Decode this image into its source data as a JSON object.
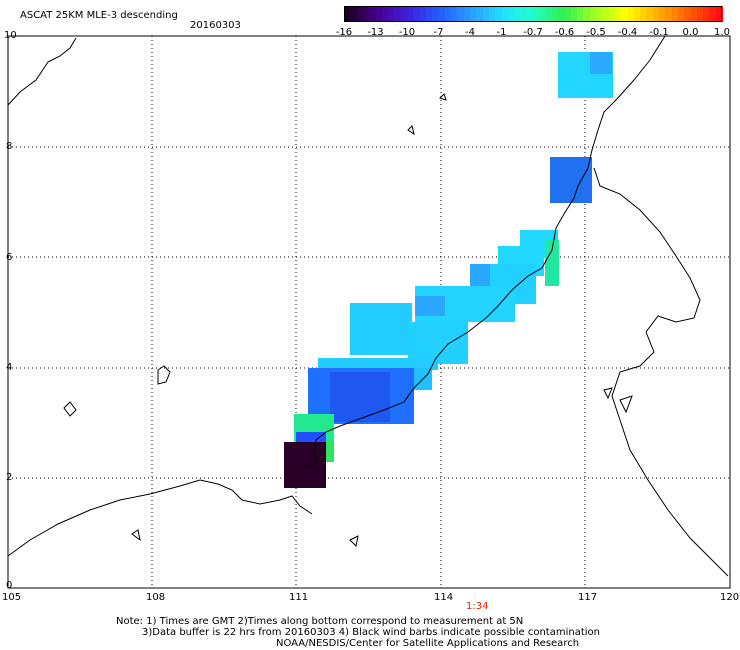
{
  "header": {
    "title": "ASCAT 25KM MLE-3 descending",
    "date": "20160303"
  },
  "colorbar": {
    "labels": [
      "-16",
      "-13",
      "-10",
      "-7",
      "-4",
      "-1",
      "-0.7",
      "-0.6",
      "-0.5",
      "-0.4",
      "-0.1",
      "0.0",
      "1.0"
    ],
    "colors": [
      "#1a0020",
      "#4a0090",
      "#3f20e0",
      "#2060ff",
      "#2a9cff",
      "#22e0ff",
      "#20ffc8",
      "#30f050",
      "#a0ff20",
      "#ffff00",
      "#ffb000",
      "#ff6000",
      "#ff1010"
    ]
  },
  "axes": {
    "x_ticks": [
      "105",
      "108",
      "111",
      "114",
      "117",
      "120"
    ],
    "y_ticks": [
      "0",
      "2",
      "4",
      "6",
      "8",
      "10"
    ]
  },
  "time_marker": {
    "label": "1:34",
    "color": "#dd2200"
  },
  "notes": {
    "line1": "Note: 1) Times are GMT 2)Times along bottom correspond to measurement at 5N",
    "line2": "3)Data buffer is 22 hrs from 20160303 4) Black wind barbs indicate possible contamination",
    "line3": "NOAA/NESDIS/Center for Satellite Applications and Research"
  }
}
